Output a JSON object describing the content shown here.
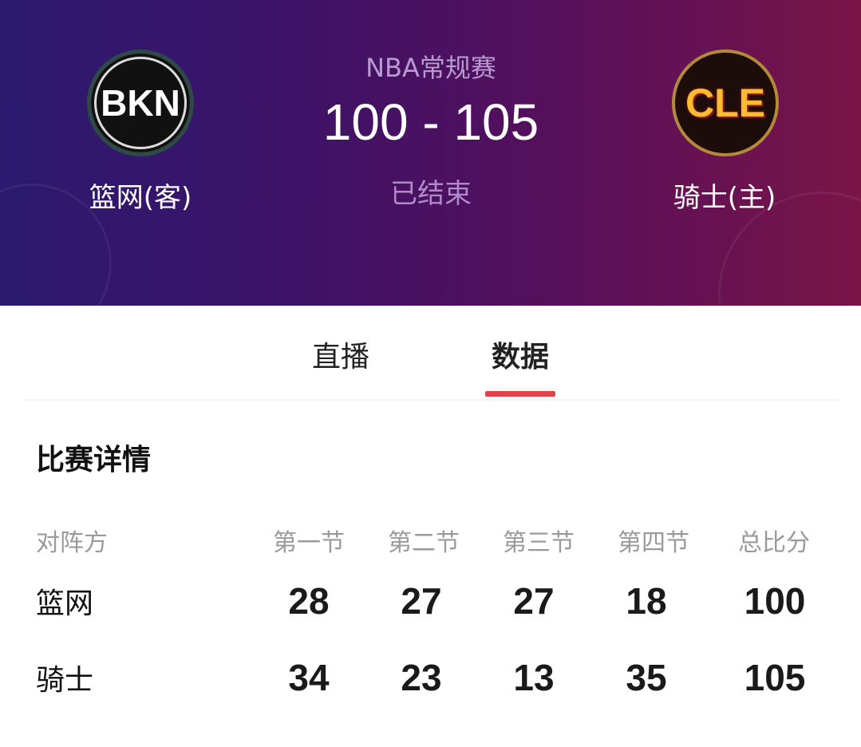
{
  "header": {
    "league": "NBA常规赛",
    "score": "100 - 105",
    "status": "已结束",
    "away": {
      "abbr": "BKN",
      "name": "篮网(客)"
    },
    "home": {
      "abbr": "CLE",
      "name": "骑士(主)"
    }
  },
  "tabs": [
    {
      "label": "直播"
    },
    {
      "label": "数据",
      "active": true
    }
  ],
  "accent": "#e0434d",
  "section_title": "比赛详情",
  "table": {
    "headers": [
      "对阵方",
      "第一节",
      "第二节",
      "第三节",
      "第四节",
      "总比分"
    ],
    "rows": [
      {
        "team": "篮网",
        "scores": [
          "28",
          "27",
          "27",
          "18",
          "100"
        ]
      },
      {
        "team": "骑士",
        "scores": [
          "34",
          "23",
          "13",
          "35",
          "105"
        ]
      }
    ]
  }
}
